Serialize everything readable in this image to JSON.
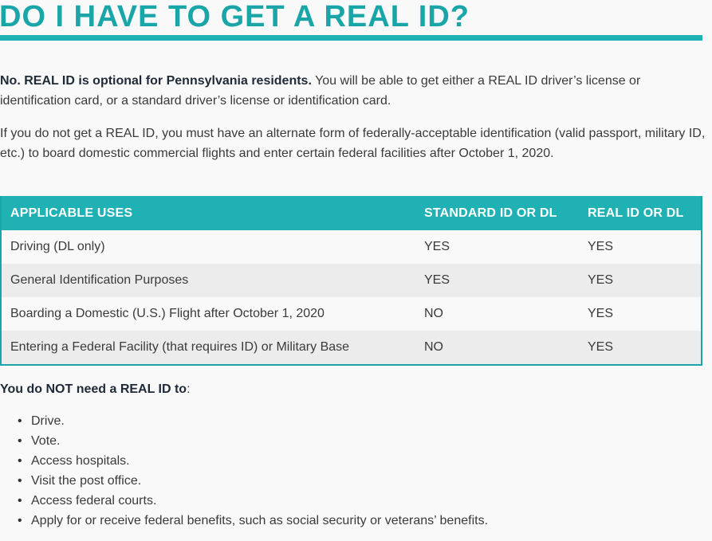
{
  "heading": "DO I HAVE TO GET A REAL ID?",
  "para1": {
    "bold": "No. REAL ID is optional for Pennsylvania residents.",
    "rest": " You will be able to get either a REAL ID driver’s license or identification card, or a standard driver’s license or identification card."
  },
  "para2": "If you do not get a REAL ID, you must have an alternate form of federally-acceptable identification (valid passport, military ID, etc.) to board domestic commercial flights and enter certain federal facilities after October 1, 2020.",
  "table": {
    "headers": [
      "APPLICABLE USES",
      "STANDARD ID OR DL",
      "REAL ID OR DL"
    ],
    "rows": [
      [
        "Driving (DL only)",
        "YES",
        "YES"
      ],
      [
        "General Identification Purposes",
        "YES",
        "YES"
      ],
      [
        "Boarding a Domestic (U.S.) Flight after October 1, 2020",
        "NO",
        "YES"
      ],
      [
        "Entering a Federal Facility (that requires ID) or Military Base",
        "NO",
        "YES"
      ]
    ]
  },
  "lead": {
    "bold": "You do NOT need a REAL ID to",
    "rest": ":"
  },
  "list": {
    "bullet": "•",
    "items": [
      "Drive.",
      "Vote.",
      "Access hospitals.",
      "Visit the post office.",
      "Access federal courts.",
      "Apply for or receive federal benefits, such as social security or veterans’ benefits."
    ]
  },
  "colors": {
    "accent": "#1aa6a8",
    "header_bg": "#1fb1b3",
    "row_alt": "#ececec",
    "background": "#f9f9f9"
  }
}
